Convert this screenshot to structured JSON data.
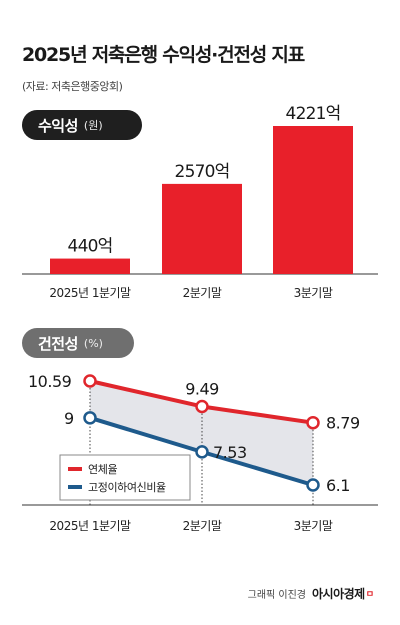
{
  "title": "2025년 저축은행 수익성·건전성 지표",
  "source": "(자료: 저축은행중앙회)",
  "credit": {
    "author": "그래픽 이진경",
    "brand": "아시아경제",
    "brand_mark": "ㅁ"
  },
  "colors": {
    "bar": "#e8202a",
    "delinquency": "#e0262c",
    "fixed": "#1e5a8c",
    "shade": "#e4e5ea"
  },
  "chart_data": [
    {
      "type": "bar",
      "pill_label": "수익성",
      "pill_unit": "(원)",
      "categories": [
        "2025년 1분기말",
        "2분기말",
        "3분기말"
      ],
      "values": [
        440,
        2570,
        4221
      ],
      "value_labels": [
        "440억",
        "2570억",
        "4221억"
      ],
      "unit": "억 원"
    },
    {
      "type": "line",
      "pill_label": "건전성",
      "pill_unit": "(%)",
      "categories": [
        "2025년 1분기말",
        "2분기말",
        "3분기말"
      ],
      "series": [
        {
          "name": "연체율",
          "values": [
            10.59,
            9.49,
            8.79
          ],
          "labels": [
            "10.59",
            "9.49",
            "8.79"
          ]
        },
        {
          "name": "고정이하여신비율",
          "values": [
            9,
            7.53,
            6.1
          ],
          "labels": [
            "9",
            "7.53",
            "6.1"
          ]
        }
      ]
    }
  ]
}
